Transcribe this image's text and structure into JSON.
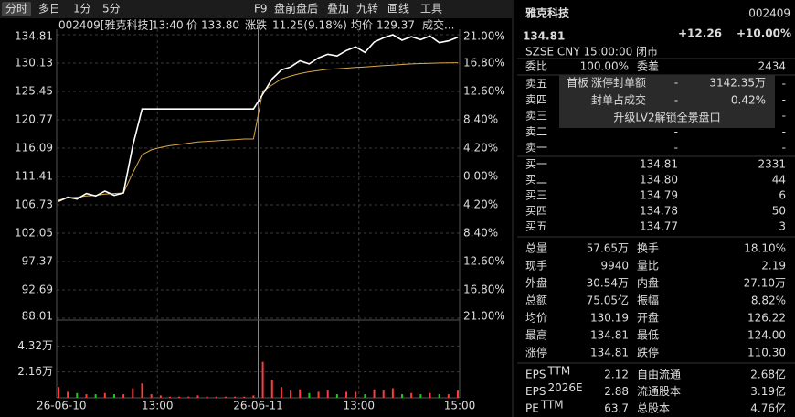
{
  "toolbar": {
    "tabs": [
      "分时",
      "多日",
      "1分",
      "5分"
    ],
    "tools": [
      "F9",
      "盘前盘后",
      "叠加",
      "九转",
      "画线",
      "工具"
    ]
  },
  "chart_data": {
    "type": "line",
    "header": {
      "title": "002409[雅克科技]",
      "time": "13:40",
      "price_label": "价",
      "price": "133.80",
      "change_label": "涨跌",
      "change": "11.25(9.18%)",
      "avg_label": "均价",
      "avg": "129.37",
      "volume_label": "成交..."
    },
    "x_labels": [
      "26-06-10",
      "13:00",
      "26-06-11",
      "13:00",
      "15:00"
    ],
    "ylim": [
      88.01,
      134.81
    ],
    "yticks": [
      134.81,
      130.13,
      125.45,
      120.77,
      116.09,
      111.41,
      106.73,
      102.05,
      97.37,
      92.69,
      88.01
    ],
    "y2lim": [
      -21,
      21
    ],
    "y2ticks": [
      {
        "value": 21,
        "label": "21.00%"
      },
      {
        "value": 16.8,
        "label": "16.80%"
      },
      {
        "value": 12.6,
        "label": "12.60%"
      },
      {
        "value": 8.4,
        "label": "8.40%"
      },
      {
        "value": 4.2,
        "label": "4.20%"
      },
      {
        "value": 0,
        "label": "0.00%"
      },
      {
        "value": -4.2,
        "label": "4.20%"
      },
      {
        "value": -8.4,
        "label": "8.40%"
      },
      {
        "value": -12.6,
        "label": "12.60%"
      },
      {
        "value": -16.8,
        "label": "16.80%"
      },
      {
        "value": -21,
        "label": "21.00%"
      }
    ],
    "colors": {
      "up": "#ff3b3b",
      "down": "#22c522",
      "flat": "#dddddd"
    },
    "price": {
      "color": "#ffffff",
      "values": [
        107.3,
        108.0,
        107.7,
        108.6,
        108.2,
        109.0,
        108.3,
        108.7,
        116.5,
        122.55,
        122.55,
        122.55,
        122.55,
        122.55,
        122.55,
        122.55,
        122.55,
        122.55,
        122.55,
        122.55,
        122.55,
        122.55,
        125.0,
        127.5,
        129.0,
        129.5,
        130.5,
        130.0,
        131.0,
        131.6,
        131.3,
        132.2,
        132.8,
        131.9,
        133.6,
        134.3,
        134.81,
        133.9,
        134.5,
        134.0,
        134.6,
        133.5,
        133.8,
        134.4
      ]
    },
    "average": {
      "color": "#d9a84a",
      "values": [
        107.5,
        107.9,
        108.0,
        108.2,
        108.3,
        108.5,
        108.6,
        108.7,
        112.0,
        115.0,
        115.8,
        116.2,
        116.5,
        116.7,
        116.9,
        117.1,
        117.2,
        117.3,
        117.4,
        117.5,
        117.6,
        117.6,
        125.5,
        126.5,
        127.5,
        128.0,
        128.4,
        128.7,
        128.9,
        129.1,
        129.2,
        129.3,
        129.4,
        129.5,
        129.6,
        129.7,
        129.8,
        129.9,
        130.0,
        130.05,
        130.1,
        130.15,
        130.18,
        130.19
      ]
    },
    "volume": {
      "ylim": [
        0,
        6.48
      ],
      "yticks": [
        {
          "value": 4.32,
          "label": "4.32万"
        },
        {
          "value": 2.16,
          "label": "2.16万"
        }
      ],
      "values": [
        0.9,
        0.5,
        0.4,
        0.3,
        0.3,
        0.4,
        0.3,
        0.3,
        0.8,
        1.2,
        0.3,
        0.2,
        0.1,
        0.1,
        0.1,
        0.2,
        0.1,
        0.1,
        0.1,
        0.1,
        0.1,
        0.2,
        3.0,
        1.5,
        0.9,
        0.6,
        0.7,
        0.4,
        0.5,
        0.6,
        0.3,
        0.5,
        0.5,
        0.3,
        0.7,
        0.6,
        0.8,
        0.3,
        0.4,
        0.3,
        0.4,
        0.3,
        0.3,
        0.6
      ]
    }
  },
  "quote": {
    "name": "雅克科技",
    "code": "002409",
    "price": "134.81",
    "change": "+12.26",
    "pct": "+10.00%",
    "meta": "SZSE CNY 15:00:00 闭市",
    "ratio": {
      "cells": [
        "委比",
        "100.00%",
        "委差",
        "2434"
      ],
      "colors": [
        "#ff3b3b",
        "#ff3b3b"
      ]
    },
    "sells": [
      [
        "卖五",
        "-",
        "-"
      ],
      [
        "卖四",
        "-",
        "-"
      ],
      [
        "卖三",
        "-",
        "-"
      ],
      [
        "卖二",
        "-",
        "-"
      ],
      [
        "卖一",
        "-",
        "-"
      ]
    ],
    "buys": [
      [
        "买一",
        "134.81",
        "2331"
      ],
      [
        "买二",
        "134.80",
        "44"
      ],
      [
        "买三",
        "134.79",
        "6"
      ],
      [
        "买四",
        "134.78",
        "50"
      ],
      [
        "买五",
        "134.77",
        "3"
      ]
    ],
    "popup": {
      "tag": "首板",
      "row1": [
        "涨停封单额",
        "-",
        "3142.35万"
      ],
      "row2": [
        "封单占成交",
        "-",
        "0.42%"
      ],
      "upgrade": "升级LV2解锁全景盘口"
    },
    "stats": [
      {
        "cells": [
          "总量",
          "57.65万",
          "换手",
          "18.10%"
        ],
        "colors": [
          "#dddddd",
          "#dddddd"
        ]
      },
      {
        "cells": [
          "现手",
          "9940",
          "量比",
          "2.19"
        ],
        "colors": [
          "#dddddd",
          "#dddddd"
        ]
      },
      {
        "cells": [
          "外盘",
          "30.54万",
          "内盘",
          "27.10万"
        ],
        "colors": [
          "#ff3b3b",
          "#22c522"
        ]
      },
      {
        "cells": [
          "总额",
          "75.05亿",
          "振幅",
          "8.82%"
        ],
        "colors": [
          "#dddddd",
          "#dddddd"
        ]
      },
      {
        "cells": [
          "均价",
          "130.19",
          "开盘",
          "126.22"
        ],
        "colors": [
          "#ff3b3b",
          "#ff3b3b"
        ]
      },
      {
        "cells": [
          "最高",
          "134.81",
          "最低",
          "124.00"
        ],
        "colors": [
          "#ff3b3b",
          "#ff3b3b"
        ]
      },
      {
        "cells": [
          "涨停",
          "134.81",
          "跌停",
          "110.30"
        ],
        "colors": [
          "#ff3b3b",
          "#22c522"
        ]
      }
    ],
    "fundamentals": [
      {
        "label": "EPS",
        "sup": "TTM",
        "cells": [
          "2.12",
          "自由流通",
          "2.68亿"
        ]
      },
      {
        "label": "EPS",
        "sup": "2026E",
        "cells": [
          "2.88",
          "流通股本",
          "3.19亿"
        ]
      },
      {
        "label": "PE",
        "sup": "TTM",
        "cells": [
          "63.7",
          "总股本",
          "4.76亿"
        ]
      }
    ]
  }
}
